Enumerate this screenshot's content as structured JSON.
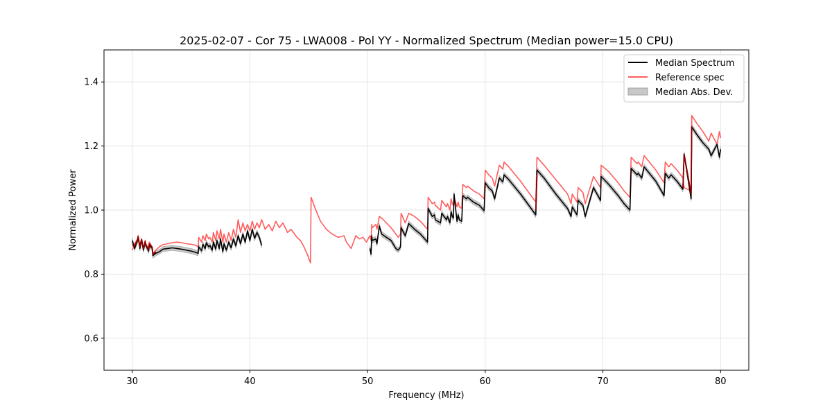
{
  "chart_data": {
    "type": "line",
    "title": "2025-02-07 - Cor 75 - LWA008 - Pol YY - Normalized Spectrum (Median power=15.0 CPU)",
    "xlabel": "Frequency (MHz)",
    "ylabel": "Normalized Power",
    "xlim": [
      27.6,
      82.4
    ],
    "ylim": [
      0.5,
      1.5
    ],
    "xticks": [
      30,
      40,
      50,
      60,
      70,
      80
    ],
    "yticks": [
      0.6,
      0.8,
      1.0,
      1.2,
      1.4
    ],
    "grid": true,
    "legend_position": "top-right",
    "colors": {
      "median": "#000000",
      "reference": "#ff5c5c",
      "mad_fill": "#c8c8c8",
      "mad_edge": "#a0a0a0",
      "overlap": "#8b0000",
      "grid": "#e5e5e5"
    },
    "series": [
      {
        "name": "Median Spectrum",
        "segments": [
          {
            "x": [
              30.0,
              30.2,
              30.45,
              30.5,
              30.65,
              30.75,
              30.8,
              30.95,
              31.1,
              31.15,
              31.4,
              31.45,
              31.7,
              31.75,
              32.0,
              32.3,
              32.5,
              32.6,
              33.0,
              33.4,
              33.8,
              34.2,
              34.6,
              35.0,
              35.4,
              35.6,
              35.65,
              35.9,
              36.0,
              36.2,
              36.3,
              36.5,
              36.6,
              36.8,
              36.9,
              37.1,
              37.2,
              37.4,
              37.5,
              37.7,
              37.8,
              38.0,
              38.2,
              38.4,
              38.6,
              38.8,
              39.0,
              39.2,
              39.4,
              39.6,
              39.8,
              40.0,
              40.2,
              40.4,
              40.6,
              40.8,
              41.0
            ],
            "y": [
              0.905,
              0.88,
              0.905,
              0.915,
              0.88,
              0.9,
              0.905,
              0.875,
              0.9,
              0.89,
              0.872,
              0.89,
              0.88,
              0.858,
              0.865,
              0.87,
              0.875,
              0.878,
              0.88,
              0.882,
              0.88,
              0.878,
              0.875,
              0.872,
              0.868,
              0.865,
              0.885,
              0.873,
              0.893,
              0.88,
              0.898,
              0.885,
              0.89,
              0.875,
              0.9,
              0.878,
              0.905,
              0.88,
              0.91,
              0.87,
              0.895,
              0.875,
              0.9,
              0.882,
              0.91,
              0.888,
              0.92,
              0.895,
              0.925,
              0.9,
              0.935,
              0.905,
              0.94,
              0.912,
              0.93,
              0.915,
              0.89
            ]
          },
          {
            "x": [
              50.2,
              50.3,
              50.35,
              50.4,
              50.7,
              50.8,
              51.0,
              51.2,
              51.6,
              52.0,
              52.4,
              52.6,
              52.8,
              52.85,
              53.2,
              53.5,
              54.0,
              54.5,
              55.1,
              55.15,
              55.5,
              55.7,
              55.75,
              56.2,
              56.3,
              56.7,
              56.8,
              57.0,
              57.1,
              57.2,
              57.3,
              57.35,
              57.6,
              57.7,
              57.8,
              58.0,
              58.1,
              58.4,
              58.5,
              59.0,
              59.5,
              59.9,
              60.0,
              60.3,
              60.6,
              60.8,
              61.2,
              61.5,
              61.6,
              62.0,
              63.0,
              64.3,
              64.4,
              65.0,
              66.0,
              67.0,
              67.3,
              67.4,
              67.8,
              67.9,
              68.3,
              68.5,
              69.2,
              69.8,
              69.85,
              70.5,
              71.3,
              71.8,
              72.3,
              72.4,
              72.9,
              73.0,
              73.3,
              73.5,
              74.5,
              75.2,
              75.3,
              75.6,
              75.8,
              76.3,
              76.8,
              76.9,
              77.5,
              77.55,
              78.0,
              78.5,
              79.0,
              79.2,
              79.7,
              79.9,
              80.0
            ],
            "y": [
              0.88,
              0.862,
              0.92,
              0.905,
              0.91,
              0.895,
              0.95,
              0.925,
              0.915,
              0.905,
              0.88,
              0.875,
              0.885,
              0.945,
              0.92,
              0.958,
              0.94,
              0.925,
              0.9,
              1.005,
              0.98,
              0.985,
              0.97,
              0.96,
              0.99,
              0.97,
              0.98,
              0.96,
              0.995,
              0.98,
              0.975,
              1.05,
              0.965,
              0.985,
              0.97,
              0.965,
              1.045,
              1.035,
              1.04,
              1.025,
              1.015,
              0.998,
              1.085,
              1.07,
              1.06,
              1.035,
              1.1,
              1.088,
              1.11,
              1.095,
              1.05,
              0.985,
              1.125,
              1.1,
              1.05,
              1.005,
              0.98,
              1.01,
              0.985,
              1.03,
              1.015,
              0.98,
              1.07,
              1.03,
              1.105,
              1.08,
              1.045,
              1.02,
              1.0,
              1.13,
              1.11,
              1.115,
              1.1,
              1.135,
              1.09,
              1.045,
              1.115,
              1.1,
              1.11,
              1.09,
              1.065,
              1.175,
              1.035,
              1.26,
              1.235,
              1.21,
              1.19,
              1.17,
              1.205,
              1.165,
              1.19
            ]
          }
        ]
      },
      {
        "name": "Reference spec",
        "segments": [
          {
            "x": [
              30.0,
              30.2,
              30.45,
              30.5,
              30.65,
              30.75,
              30.8,
              30.95,
              31.1,
              31.15,
              31.4,
              31.45,
              31.7,
              31.75,
              32.0,
              32.3,
              32.5,
              32.6,
              33.0,
              33.4,
              33.8,
              34.2,
              34.6,
              35.0,
              35.4,
              35.6,
              35.65,
              35.9,
              36.0,
              36.2,
              36.3,
              36.5,
              36.6,
              36.8,
              36.9,
              37.1,
              37.2,
              37.4,
              37.5,
              37.7,
              37.8,
              38.0,
              38.2,
              38.4,
              38.6,
              38.8,
              39.0,
              39.2,
              39.4,
              39.6,
              39.8,
              40.0,
              40.2,
              40.4,
              40.6,
              40.8,
              41.0,
              41.3,
              41.6,
              41.9,
              42.2,
              42.5,
              42.8,
              43.0,
              43.2,
              43.5,
              43.8,
              44.0,
              44.3,
              44.6,
              44.9,
              45.15,
              45.2,
              45.6,
              46.0,
              46.5,
              47.0,
              47.5,
              48.0,
              48.2,
              48.6,
              49.0,
              49.3,
              49.6,
              49.9,
              50.2,
              50.3,
              50.35,
              50.4,
              50.7,
              50.8,
              51.0,
              51.2,
              51.6,
              52.0,
              52.4,
              52.6,
              52.8,
              52.85,
              53.2,
              53.5,
              54.0,
              54.5,
              55.1,
              55.15,
              55.5,
              55.7,
              55.75,
              56.2,
              56.3,
              56.7,
              56.8,
              57.0,
              57.1,
              57.2,
              57.3,
              57.35,
              57.6,
              57.7,
              57.8,
              58.0,
              58.1,
              58.4,
              58.5,
              59.0,
              59.5,
              59.9,
              60.0,
              60.3,
              60.6,
              60.8,
              61.2,
              61.5,
              61.6,
              62.0,
              63.0,
              64.3,
              64.4,
              65.0,
              66.0,
              67.0,
              67.3,
              67.4,
              67.8,
              67.9,
              68.3,
              68.5,
              69.2,
              69.8,
              69.85,
              70.5,
              71.3,
              71.8,
              72.3,
              72.4,
              72.9,
              73.0,
              73.3,
              73.5,
              74.5,
              75.2,
              75.3,
              75.6,
              75.8,
              76.3,
              76.8,
              76.9,
              77.5,
              77.55,
              78.0,
              78.5,
              79.0,
              79.2,
              79.7,
              79.9,
              80.0
            ],
            "y": [
              0.875,
              0.895,
              0.91,
              0.92,
              0.89,
              0.905,
              0.91,
              0.88,
              0.905,
              0.895,
              0.88,
              0.9,
              0.885,
              0.865,
              0.875,
              0.885,
              0.89,
              0.892,
              0.895,
              0.898,
              0.9,
              0.898,
              0.895,
              0.893,
              0.89,
              0.885,
              0.915,
              0.9,
              0.92,
              0.905,
              0.925,
              0.91,
              0.915,
              0.9,
              0.93,
              0.905,
              0.935,
              0.91,
              0.94,
              0.9,
              0.925,
              0.9,
              0.93,
              0.905,
              0.94,
              0.915,
              0.97,
              0.93,
              0.96,
              0.935,
              0.955,
              0.935,
              0.965,
              0.94,
              0.96,
              0.945,
              0.97,
              0.94,
              0.955,
              0.935,
              0.965,
              0.945,
              0.96,
              0.945,
              0.93,
              0.94,
              0.925,
              0.915,
              0.905,
              0.885,
              0.86,
              0.835,
              1.04,
              1.0,
              0.965,
              0.94,
              0.925,
              0.915,
              0.92,
              0.9,
              0.88,
              0.92,
              0.91,
              0.915,
              0.9,
              0.92,
              0.905,
              0.955,
              0.945,
              0.955,
              0.94,
              0.98,
              0.975,
              0.96,
              0.945,
              0.925,
              0.915,
              0.925,
              0.99,
              0.96,
              0.99,
              0.98,
              0.965,
              0.94,
              1.04,
              1.02,
              1.025,
              1.015,
              1.0,
              1.03,
              1.01,
              1.02,
              1.0,
              1.035,
              1.02,
              1.015,
              1.04,
              1.01,
              1.025,
              1.01,
              1.005,
              1.08,
              1.07,
              1.075,
              1.06,
              1.05,
              1.035,
              1.125,
              1.11,
              1.1,
              1.075,
              1.14,
              1.128,
              1.15,
              1.135,
              1.09,
              1.025,
              1.165,
              1.14,
              1.095,
              1.05,
              1.02,
              1.05,
              1.025,
              1.07,
              1.055,
              1.02,
              1.105,
              1.07,
              1.14,
              1.12,
              1.085,
              1.06,
              1.04,
              1.165,
              1.145,
              1.15,
              1.135,
              1.17,
              1.125,
              1.085,
              1.15,
              1.135,
              1.145,
              1.125,
              1.1,
              1.07,
              1.06,
              1.295,
              1.27,
              1.245,
              1.215,
              1.24,
              1.205,
              1.245,
              1.225
            ]
          }
        ]
      },
      {
        "name": "Median Abs. Dev.",
        "band_halfwidth": 0.008
      }
    ]
  }
}
